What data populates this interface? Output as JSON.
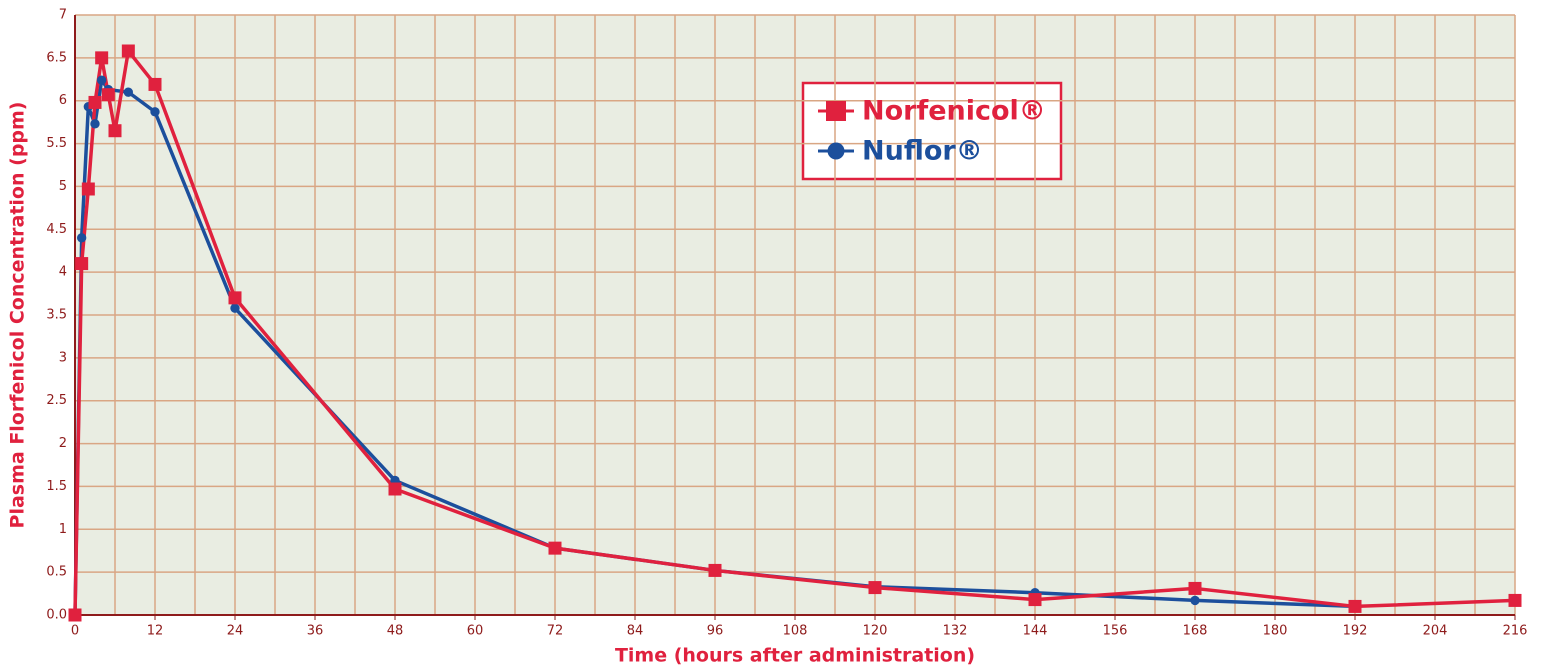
{
  "chart_data": {
    "type": "line",
    "x_label": "Time (hours after administration)",
    "y_label": "Plasma Florfenicol Concentration (ppm)",
    "xlim": [
      0,
      216
    ],
    "xticks": [
      0,
      12,
      24,
      36,
      48,
      60,
      72,
      84,
      96,
      108,
      120,
      132,
      144,
      156,
      168,
      180,
      192,
      204,
      216
    ],
    "ylim": [
      0,
      7
    ],
    "yticks": [
      {
        "value": 0,
        "label": "0.0"
      },
      0.5,
      1,
      1.5,
      2,
      2.5,
      3,
      3.5,
      4,
      4.5,
      5,
      5.5,
      6,
      6.5,
      7
    ],
    "grid": true,
    "series": [
      {
        "name": "Norfenicol®",
        "color": "#e0213e",
        "marker": "square",
        "x": [
          0,
          1,
          2,
          3,
          4,
          5,
          6,
          8,
          12,
          24,
          48,
          72,
          96,
          120,
          144,
          168,
          192,
          216
        ],
        "values": [
          0,
          4.1,
          4.97,
          5.98,
          6.5,
          6.07,
          5.65,
          6.58,
          6.19,
          3.7,
          1.47,
          0.78,
          0.52,
          0.32,
          0.18,
          0.31,
          0.1,
          0.17
        ]
      },
      {
        "name": "Nuflor®",
        "color": "#1c4f9c",
        "marker": "circle",
        "x": [
          0,
          1,
          2,
          3,
          4,
          5,
          8,
          12,
          24,
          48,
          72,
          96,
          120,
          144,
          168,
          192
        ],
        "values": [
          0,
          4.4,
          5.93,
          5.73,
          6.24,
          6.13,
          6.1,
          5.87,
          3.58,
          1.57,
          0.78,
          0.52,
          0.33,
          0.26,
          0.17,
          0.1
        ]
      }
    ]
  }
}
